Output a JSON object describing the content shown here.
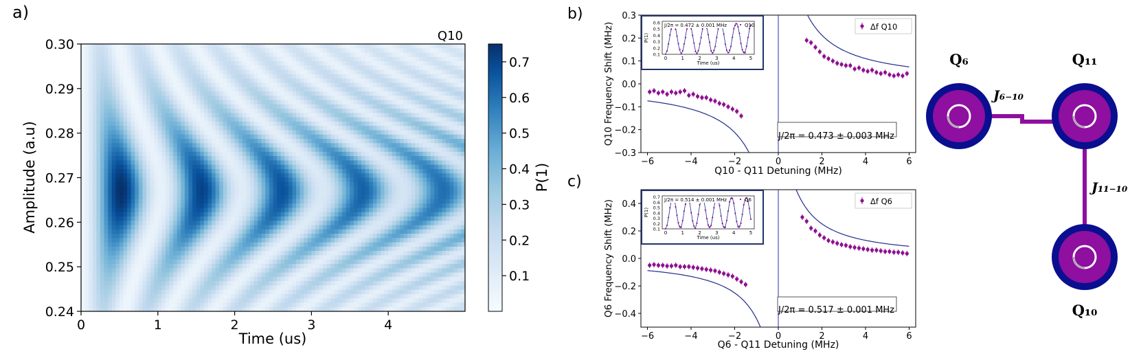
{
  "chart_data": [
    {
      "type": "heatmap",
      "panel_label": "a)",
      "title": "Q10",
      "xlabel": "Time (us)",
      "ylabel": "Amplitude (a.u)",
      "xlim": [
        0,
        5
      ],
      "ylim": [
        0.24,
        0.3
      ],
      "xticks": [
        0,
        1,
        2,
        3,
        4
      ],
      "yticks": [
        0.24,
        0.25,
        0.26,
        0.27,
        0.28,
        0.29,
        0.3
      ],
      "ytick_labels": [
        "0.24",
        "0.25",
        "0.26",
        "0.27",
        "0.28",
        "0.29",
        "0.30"
      ],
      "colorbar": {
        "label": "P(1)",
        "ticks": [
          0.1,
          0.2,
          0.3,
          0.4,
          0.5,
          0.6,
          0.7
        ],
        "range": [
          0.0,
          0.75
        ]
      },
      "center_amplitude": 0.267,
      "base_period_us": 1.05,
      "decay_time_us": 9.0
    },
    {
      "type": "scatter",
      "panel_label": "b)",
      "xlabel": "Q10 - Q11 Detuning (MHz)",
      "ylabel": "Q10 Frequency Shift (MHz)",
      "xlim": [
        -6.3,
        6.3
      ],
      "ylim": [
        -0.3,
        0.3
      ],
      "xticks": [
        -6,
        -4,
        -2,
        0,
        2,
        4,
        6
      ],
      "yticks": [
        -0.3,
        -0.2,
        -0.1,
        0.0,
        0.1,
        0.2,
        0.3
      ],
      "legend": [
        "Δf  Q10"
      ],
      "fit_text": "J/2π = 0.473 ± 0.003 MHz",
      "J": 0.473,
      "series": [
        {
          "name": "Δf Q10 (left)",
          "x": [
            -5.9,
            -5.7,
            -5.5,
            -5.3,
            -5.1,
            -4.9,
            -4.7,
            -4.5,
            -4.3,
            -4.1,
            -3.9,
            -3.7,
            -3.5,
            -3.3,
            -3.1,
            -2.9,
            -2.7,
            -2.5,
            -2.3,
            -2.1,
            -1.9,
            -1.7
          ],
          "y": [
            -0.035,
            -0.03,
            -0.04,
            -0.035,
            -0.045,
            -0.035,
            -0.04,
            -0.035,
            -0.03,
            -0.05,
            -0.045,
            -0.055,
            -0.06,
            -0.06,
            -0.07,
            -0.075,
            -0.085,
            -0.09,
            -0.1,
            -0.11,
            -0.12,
            -0.14
          ]
        },
        {
          "name": "Δf Q10 (right)",
          "x": [
            1.3,
            1.5,
            1.7,
            1.9,
            2.1,
            2.3,
            2.5,
            2.7,
            2.9,
            3.1,
            3.3,
            3.5,
            3.7,
            3.9,
            4.1,
            4.3,
            4.5,
            4.7,
            4.9,
            5.1,
            5.3,
            5.5,
            5.7,
            5.9
          ],
          "y": [
            0.19,
            0.18,
            0.16,
            0.14,
            0.12,
            0.11,
            0.1,
            0.09,
            0.085,
            0.08,
            0.08,
            0.065,
            0.07,
            0.06,
            0.055,
            0.06,
            0.05,
            0.045,
            0.05,
            0.04,
            0.035,
            0.04,
            0.035,
            0.045
          ]
        }
      ],
      "inset": {
        "xlabel": "Time (us)",
        "ylabel": "P(1)",
        "xticks": [
          0,
          1,
          2,
          3,
          4,
          5
        ],
        "yticks": [
          0.1,
          0.2,
          0.3,
          0.4,
          0.5,
          0.6
        ],
        "ylim": [
          0.1,
          0.62
        ],
        "text": "J/2π = 0.472 ± 0.001 MHz",
        "legend": "Q10",
        "period": 0.92
      }
    },
    {
      "type": "scatter",
      "panel_label": "c)",
      "xlabel": "Q6 - Q11 Detuning (MHz)",
      "ylabel": "Q6 Frequency Shift (MHz)",
      "xlim": [
        -6.3,
        6.3
      ],
      "ylim": [
        -0.5,
        0.5
      ],
      "xticks": [
        -6,
        -4,
        -2,
        0,
        2,
        4,
        6
      ],
      "yticks": [
        -0.4,
        -0.2,
        0.0,
        0.2,
        0.4
      ],
      "legend": [
        "Δf  Q6"
      ],
      "fit_text": "J/2π = 0.517 ± 0.001 MHz",
      "J": 0.517,
      "series": [
        {
          "name": "Δf Q6 (left)",
          "x": [
            -5.9,
            -5.7,
            -5.5,
            -5.3,
            -5.1,
            -4.9,
            -4.7,
            -4.5,
            -4.3,
            -4.1,
            -3.9,
            -3.7,
            -3.5,
            -3.3,
            -3.1,
            -2.9,
            -2.7,
            -2.5,
            -2.3,
            -2.1,
            -1.9,
            -1.7,
            -1.5
          ],
          "y": [
            -0.05,
            -0.045,
            -0.05,
            -0.05,
            -0.055,
            -0.055,
            -0.05,
            -0.06,
            -0.06,
            -0.06,
            -0.065,
            -0.07,
            -0.075,
            -0.08,
            -0.085,
            -0.09,
            -0.1,
            -0.11,
            -0.12,
            -0.13,
            -0.15,
            -0.17,
            -0.19
          ]
        },
        {
          "name": "Δf Q6 (right)",
          "x": [
            1.1,
            1.3,
            1.5,
            1.7,
            1.9,
            2.1,
            2.3,
            2.5,
            2.7,
            2.9,
            3.1,
            3.3,
            3.5,
            3.7,
            3.9,
            4.1,
            4.3,
            4.5,
            4.7,
            4.9,
            5.1,
            5.3,
            5.5,
            5.7,
            5.9
          ],
          "y": [
            0.3,
            0.27,
            0.22,
            0.2,
            0.17,
            0.15,
            0.13,
            0.12,
            0.11,
            0.1,
            0.095,
            0.085,
            0.08,
            0.075,
            0.07,
            0.065,
            0.06,
            0.06,
            0.055,
            0.05,
            0.05,
            0.045,
            0.045,
            0.04,
            0.035
          ]
        }
      ],
      "inset": {
        "xlabel": "Time (us)",
        "ylabel": "P(1)",
        "xticks": [
          0,
          1,
          2,
          3,
          4,
          5
        ],
        "yticks": [
          0.1,
          0.2,
          0.3,
          0.4,
          0.5,
          0.6,
          0.7
        ],
        "ylim": [
          0.1,
          0.72
        ],
        "text": "J/2π = 0.514 ± 0.001 MHz",
        "legend": "Q6",
        "period": 0.86
      }
    }
  ],
  "diagram": {
    "qubits": [
      "Q₆",
      "Q₁₁",
      "Q₁₀"
    ],
    "couplings": [
      "J₆₋₁₀",
      "J₁₁₋₁₀"
    ],
    "colors": {
      "outer": "#0a0f8f",
      "inner": "#8e0fa0",
      "bar": "#8e0fa0"
    }
  },
  "colors": {
    "heat_low": "#f7fbff",
    "heat_high": "#08306b",
    "points": "#8e108f",
    "fit": "#1f2a8a"
  }
}
